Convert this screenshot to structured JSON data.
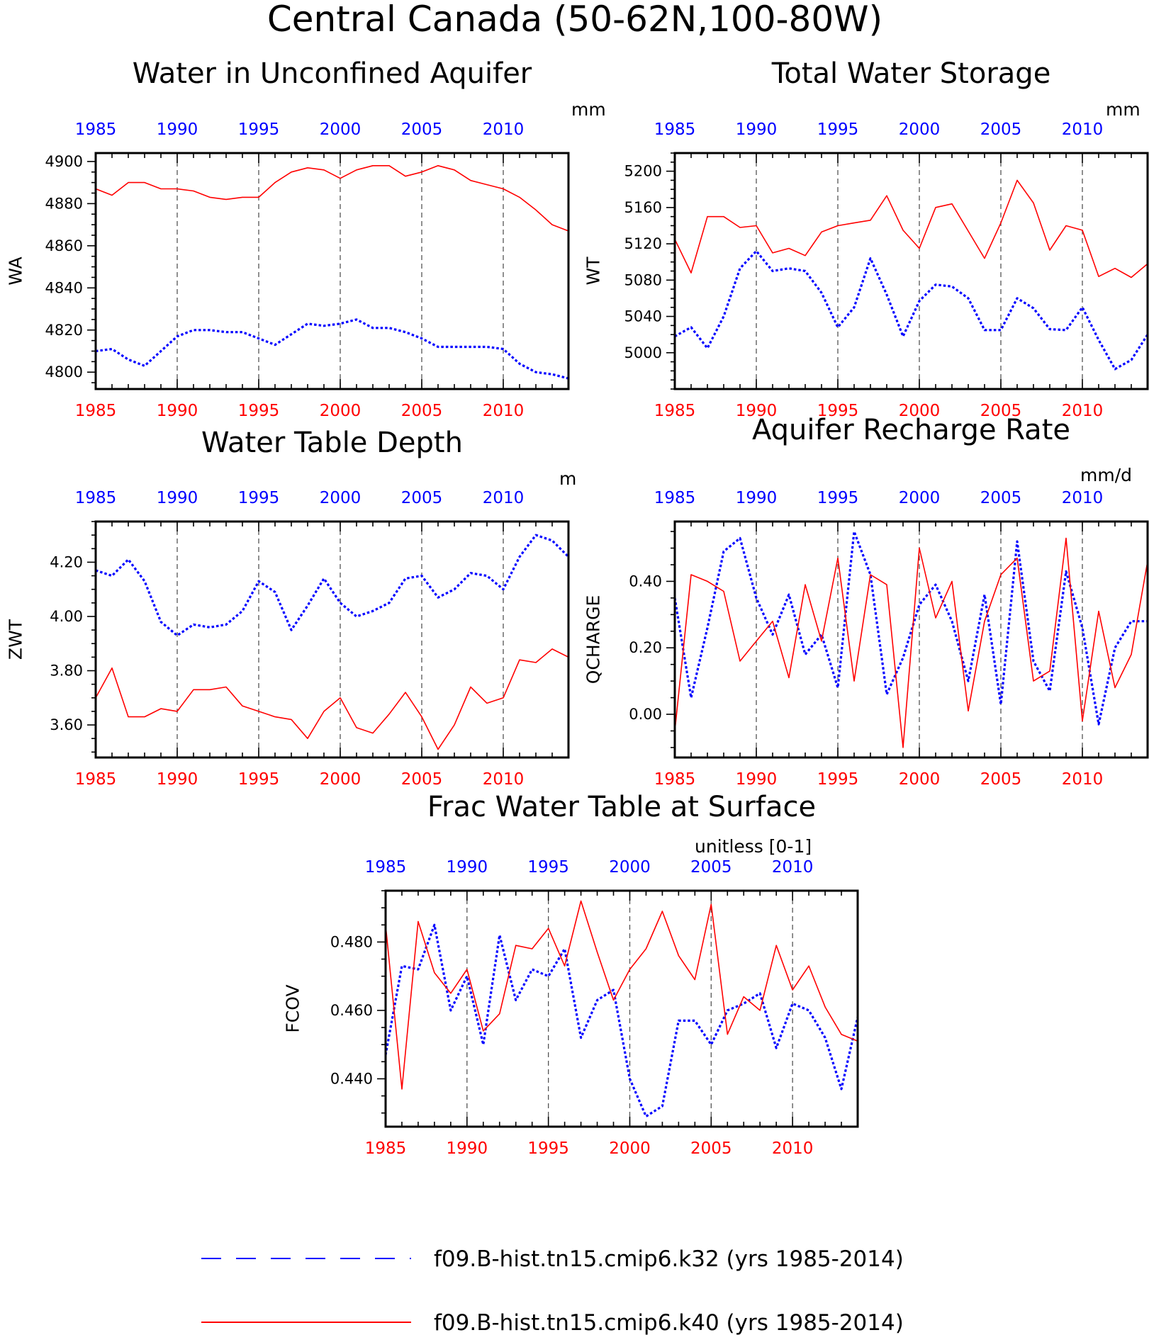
{
  "figure": {
    "title": "Central Canada (50-62N,100-80W)",
    "colors": {
      "k32": "#0000ff",
      "k40": "#ff0000",
      "axis": "#000000"
    }
  },
  "legend": {
    "entries": [
      {
        "label": "f09.B-hist.tn15.cmip6.k32 (yrs 1985-2014)",
        "color": "#0000ff",
        "style": "dashed"
      },
      {
        "label": "f09.B-hist.tn15.cmip6.k40 (yrs 1985-2014)",
        "color": "#ff0000",
        "style": "solid"
      }
    ]
  },
  "chart_data": [
    {
      "type": "line",
      "title": "Water in Unconfined Aquifer",
      "ylabel": "WA",
      "units": "mm",
      "xlim": [
        1985,
        2014
      ],
      "ylim": [
        4792,
        4904
      ],
      "yticks": [
        4800,
        4820,
        4840,
        4860,
        4880,
        4900
      ],
      "yticklabels": [
        "4800",
        "4820",
        "4840",
        "4860",
        "4880",
        "4900"
      ],
      "xticks": [
        1985,
        1990,
        1995,
        2000,
        2005,
        2010
      ],
      "x": [
        1985,
        1986,
        1987,
        1988,
        1989,
        1990,
        1991,
        1992,
        1993,
        1994,
        1995,
        1996,
        1997,
        1998,
        1999,
        2000,
        2001,
        2002,
        2003,
        2004,
        2005,
        2006,
        2007,
        2008,
        2009,
        2010,
        2011,
        2012,
        2013,
        2014
      ],
      "series": [
        {
          "name": "f09.B-hist.tn15.cmip6.k32 (yrs 1985-2014)",
          "color": "#0000ff",
          "style": "dotted",
          "values": [
            4810,
            4811,
            4806,
            4803,
            4810,
            4817,
            4820,
            4820,
            4819,
            4819,
            4816,
            4813,
            4818,
            4823,
            4822,
            4823,
            4825,
            4821,
            4821,
            4819,
            4816,
            4812,
            4812,
            4812,
            4812,
            4811,
            4804,
            4800,
            4799,
            4797
          ]
        },
        {
          "name": "f09.B-hist.tn15.cmip6.k40 (yrs 1985-2014)",
          "color": "#ff0000",
          "style": "solid",
          "values": [
            4887,
            4884,
            4890,
            4890,
            4887,
            4887,
            4886,
            4883,
            4882,
            4883,
            4883,
            4890,
            4895,
            4897,
            4896,
            4892,
            4896,
            4898,
            4898,
            4893,
            4895,
            4898,
            4896,
            4891,
            4889,
            4887,
            4883,
            4877,
            4870,
            4867
          ]
        }
      ]
    },
    {
      "type": "line",
      "title": "Total Water Storage",
      "ylabel": "WT",
      "units": "mm",
      "xlim": [
        1985,
        2014
      ],
      "ylim": [
        4960,
        5220
      ],
      "yticks": [
        5000,
        5040,
        5080,
        5120,
        5160,
        5200
      ],
      "yticklabels": [
        "5000",
        "5040",
        "5080",
        "5120",
        "5160",
        "5200"
      ],
      "xticks": [
        1985,
        1990,
        1995,
        2000,
        2005,
        2010
      ],
      "x": [
        1985,
        1986,
        1987,
        1988,
        1989,
        1990,
        1991,
        1992,
        1993,
        1994,
        1995,
        1996,
        1997,
        1998,
        1999,
        2000,
        2001,
        2002,
        2003,
        2004,
        2005,
        2006,
        2007,
        2008,
        2009,
        2010,
        2011,
        2012,
        2013,
        2014
      ],
      "series": [
        {
          "name": "f09.B-hist.tn15.cmip6.k32 (yrs 1985-2014)",
          "color": "#0000ff",
          "style": "dotted",
          "values": [
            5018,
            5028,
            5005,
            5040,
            5093,
            5112,
            5090,
            5093,
            5090,
            5066,
            5028,
            5050,
            5104,
            5064,
            5018,
            5057,
            5075,
            5073,
            5060,
            5025,
            5025,
            5060,
            5049,
            5026,
            5025,
            5050,
            5014,
            4982,
            4992,
            5020
          ]
        },
        {
          "name": "f09.B-hist.tn15.cmip6.k40 (yrs 1985-2014)",
          "color": "#ff0000",
          "style": "solid",
          "values": [
            5125,
            5088,
            5150,
            5150,
            5138,
            5140,
            5110,
            5115,
            5107,
            5133,
            5140,
            5143,
            5146,
            5173,
            5135,
            5115,
            5160,
            5164,
            5134,
            5104,
            5143,
            5190,
            5165,
            5113,
            5140,
            5135,
            5084,
            5093,
            5083,
            5098
          ]
        }
      ]
    },
    {
      "type": "line",
      "title": "Water Table Depth",
      "ylabel": "ZWT",
      "units": "m",
      "xlim": [
        1985,
        2014
      ],
      "ylim": [
        3.48,
        4.35
      ],
      "yticks": [
        3.6,
        3.8,
        4.0,
        4.2
      ],
      "yticklabels": [
        "3.60",
        "3.80",
        "4.00",
        "4.20"
      ],
      "xticks": [
        1985,
        1990,
        1995,
        2000,
        2005,
        2010
      ],
      "x": [
        1985,
        1986,
        1987,
        1988,
        1989,
        1990,
        1991,
        1992,
        1993,
        1994,
        1995,
        1996,
        1997,
        1998,
        1999,
        2000,
        2001,
        2002,
        2003,
        2004,
        2005,
        2006,
        2007,
        2008,
        2009,
        2010,
        2011,
        2012,
        2013,
        2014
      ],
      "series": [
        {
          "name": "f09.B-hist.tn15.cmip6.k32 (yrs 1985-2014)",
          "color": "#0000ff",
          "style": "dotted",
          "values": [
            4.17,
            4.15,
            4.21,
            4.13,
            3.98,
            3.93,
            3.97,
            3.96,
            3.97,
            4.02,
            4.13,
            4.09,
            3.95,
            4.04,
            4.14,
            4.05,
            4.0,
            4.02,
            4.05,
            4.14,
            4.15,
            4.07,
            4.1,
            4.16,
            4.15,
            4.1,
            4.22,
            4.3,
            4.28,
            4.22
          ]
        },
        {
          "name": "f09.B-hist.tn15.cmip6.k40 (yrs 1985-2014)",
          "color": "#ff0000",
          "style": "solid",
          "values": [
            3.7,
            3.81,
            3.63,
            3.63,
            3.66,
            3.65,
            3.73,
            3.73,
            3.74,
            3.67,
            3.65,
            3.63,
            3.62,
            3.55,
            3.65,
            3.7,
            3.59,
            3.57,
            3.64,
            3.72,
            3.63,
            3.51,
            3.6,
            3.74,
            3.68,
            3.7,
            3.84,
            3.83,
            3.88,
            3.85
          ]
        }
      ]
    },
    {
      "type": "line",
      "title": "Aquifer Recharge Rate",
      "ylabel": "QCHARGE",
      "units": "mm/d",
      "xlim": [
        1985,
        2014
      ],
      "ylim": [
        -0.13,
        0.58
      ],
      "yticks": [
        0.0,
        0.2,
        0.4
      ],
      "yticklabels": [
        "0.00",
        "0.20",
        "0.40"
      ],
      "xticks": [
        1985,
        1990,
        1995,
        2000,
        2005,
        2010
      ],
      "x": [
        1985,
        1986,
        1987,
        1988,
        1989,
        1990,
        1991,
        1992,
        1993,
        1994,
        1995,
        1996,
        1997,
        1998,
        1999,
        2000,
        2001,
        2002,
        2003,
        2004,
        2005,
        2006,
        2007,
        2008,
        2009,
        2010,
        2011,
        2012,
        2013,
        2014
      ],
      "series": [
        {
          "name": "f09.B-hist.tn15.cmip6.k32 (yrs 1985-2014)",
          "color": "#0000ff",
          "style": "dotted",
          "values": [
            0.35,
            0.05,
            0.26,
            0.49,
            0.53,
            0.35,
            0.24,
            0.36,
            0.18,
            0.24,
            0.08,
            0.55,
            0.42,
            0.06,
            0.17,
            0.33,
            0.39,
            0.28,
            0.1,
            0.36,
            0.03,
            0.52,
            0.16,
            0.07,
            0.43,
            0.26,
            -0.03,
            0.2,
            0.28,
            0.28
          ]
        },
        {
          "name": "f09.B-hist.tn15.cmip6.k40 (yrs 1985-2014)",
          "color": "#ff0000",
          "style": "solid",
          "values": [
            -0.05,
            0.42,
            0.4,
            0.37,
            0.16,
            0.22,
            0.28,
            0.11,
            0.39,
            0.22,
            0.47,
            0.1,
            0.42,
            0.39,
            -0.1,
            0.5,
            0.29,
            0.4,
            0.01,
            0.28,
            0.42,
            0.47,
            0.1,
            0.13,
            0.53,
            -0.02,
            0.31,
            0.08,
            0.18,
            0.46
          ]
        }
      ]
    },
    {
      "type": "line",
      "title": "Frac Water Table at Surface",
      "ylabel": "FCOV",
      "units": "unitless [0-1]",
      "xlim": [
        1985,
        2014
      ],
      "ylim": [
        0.426,
        0.495
      ],
      "yticks": [
        0.44,
        0.46,
        0.48
      ],
      "yticklabels": [
        "0.440",
        "0.460",
        "0.480"
      ],
      "xticks": [
        1985,
        1990,
        1995,
        2000,
        2005,
        2010
      ],
      "x": [
        1985,
        1986,
        1987,
        1988,
        1989,
        1990,
        1991,
        1992,
        1993,
        1994,
        1995,
        1996,
        1997,
        1998,
        1999,
        2000,
        2001,
        2002,
        2003,
        2004,
        2005,
        2006,
        2007,
        2008,
        2009,
        2010,
        2011,
        2012,
        2013,
        2014
      ],
      "series": [
        {
          "name": "f09.B-hist.tn15.cmip6.k32 (yrs 1985-2014)",
          "color": "#0000ff",
          "style": "dotted",
          "values": [
            0.447,
            0.473,
            0.472,
            0.485,
            0.46,
            0.47,
            0.45,
            0.482,
            0.463,
            0.472,
            0.47,
            0.478,
            0.452,
            0.463,
            0.466,
            0.44,
            0.429,
            0.432,
            0.457,
            0.457,
            0.45,
            0.46,
            0.462,
            0.465,
            0.449,
            0.462,
            0.46,
            0.452,
            0.437,
            0.458
          ]
        },
        {
          "name": "f09.B-hist.tn15.cmip6.k40 (yrs 1985-2014)",
          "color": "#ff0000",
          "style": "solid",
          "values": [
            0.485,
            0.437,
            0.486,
            0.471,
            0.465,
            0.472,
            0.454,
            0.459,
            0.479,
            0.478,
            0.484,
            0.473,
            0.492,
            0.477,
            0.463,
            0.472,
            0.478,
            0.489,
            0.476,
            0.469,
            0.491,
            0.453,
            0.464,
            0.46,
            0.479,
            0.466,
            0.473,
            0.461,
            0.453,
            0.451
          ]
        }
      ]
    }
  ]
}
